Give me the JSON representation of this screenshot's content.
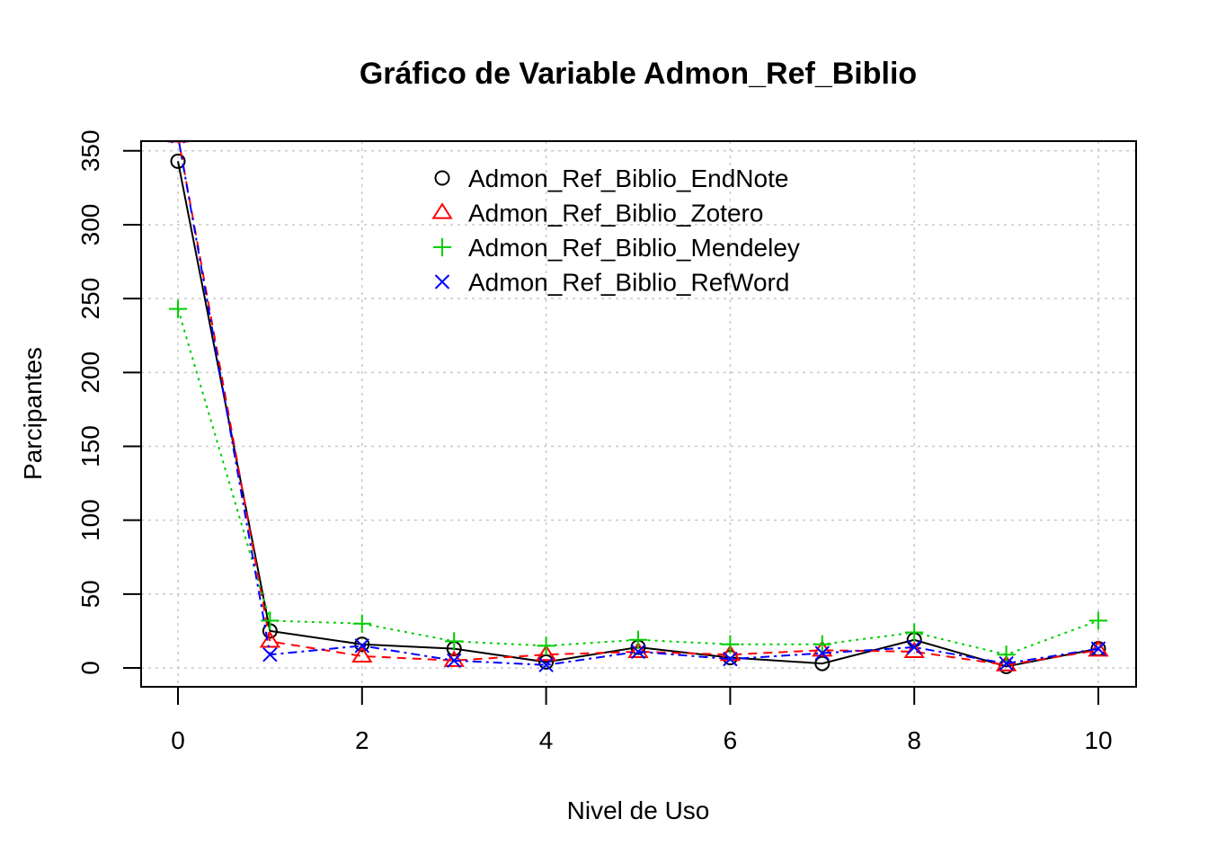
{
  "chart_data": {
    "type": "line",
    "title": "Gráfico de Variable Admon_Ref_Biblio",
    "xlabel": "Nivel de Uso",
    "ylabel": "Parcipantes",
    "x": [
      0,
      1,
      2,
      3,
      4,
      5,
      6,
      7,
      8,
      9,
      10
    ],
    "xlim": [
      -0.4,
      10.4
    ],
    "ylim": [
      -13,
      358
    ],
    "xticks": [
      0,
      2,
      4,
      6,
      8,
      10
    ],
    "yticks": [
      0,
      50,
      100,
      150,
      200,
      250,
      300,
      350
    ],
    "grid": true,
    "legend_position": "top-center",
    "series": [
      {
        "name": "Admon_Ref_Biblio_EndNote",
        "color": "#000000",
        "marker": "circle",
        "dash": "solid",
        "values": [
          343,
          25,
          16,
          13,
          4,
          14,
          7,
          3,
          19,
          1,
          13
        ]
      },
      {
        "name": "Admon_Ref_Biblio_Zotero",
        "color": "#ff0000",
        "marker": "triangle",
        "dash": "dashed",
        "values": [
          360,
          18,
          8,
          5,
          9,
          11,
          9,
          12,
          11,
          2,
          12
        ]
      },
      {
        "name": "Admon_Ref_Biblio_Mendeley",
        "color": "#00cd00",
        "marker": "plus",
        "dash": "dotted",
        "values": [
          243,
          32,
          30,
          18,
          15,
          19,
          16,
          16,
          24,
          9,
          32
        ]
      },
      {
        "name": "Admon_Ref_Biblio_RefWord",
        "color": "#0000ff",
        "marker": "cross",
        "dash": "dotdash",
        "values": [
          360,
          9,
          15,
          5,
          2,
          11,
          6,
          10,
          14,
          3,
          13
        ]
      }
    ]
  }
}
